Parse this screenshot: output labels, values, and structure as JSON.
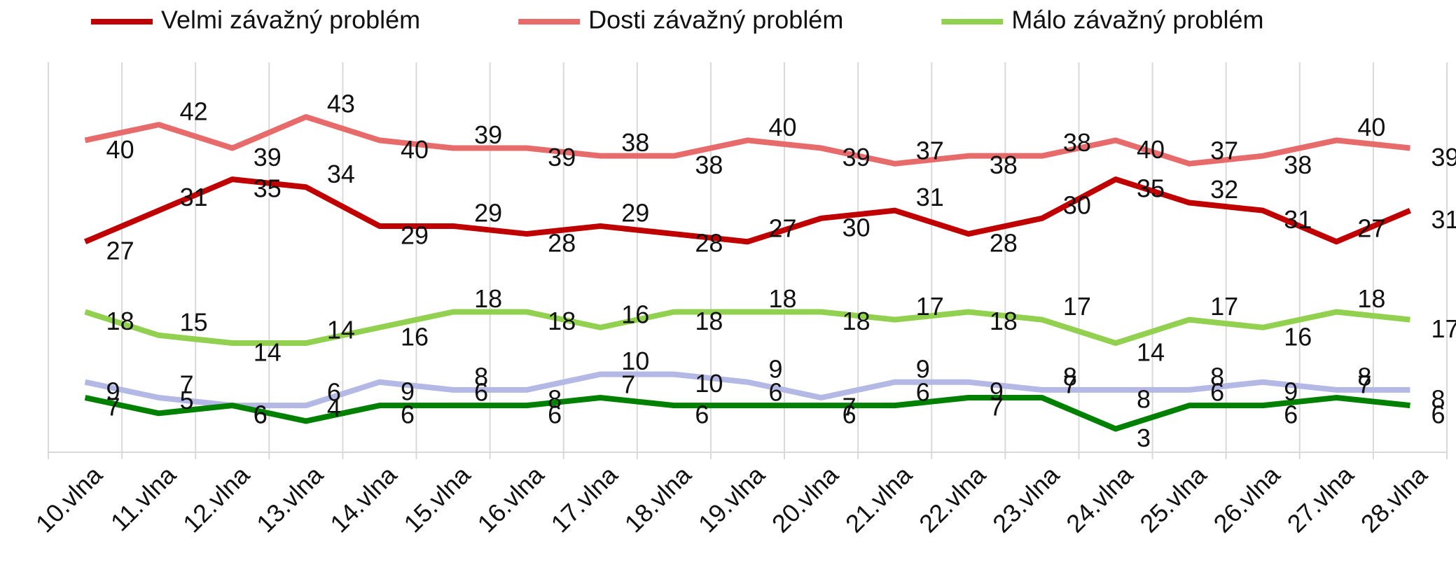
{
  "chart_data": {
    "type": "line",
    "categories": [
      "10.vlna",
      "11.vlna",
      "12.vlna",
      "13.vlna",
      "14.vlna",
      "15.vlna",
      "16.vlna",
      "17.vlna",
      "18.vlna",
      "19.vlna",
      "20.vlna",
      "21.vlna",
      "22.vlna",
      "23.vlna",
      "24.vlna",
      "25.vlna",
      "26.vlna",
      "27.vlna",
      "28.vlna"
    ],
    "series": [
      {
        "name": "Velmi závažný problém",
        "color": "#c00000",
        "values": [
          27,
          31,
          35,
          34,
          29,
          29,
          28,
          29,
          28,
          27,
          30,
          31,
          28,
          30,
          35,
          32,
          31,
          27,
          31
        ]
      },
      {
        "name": "Dosti závažný problém",
        "color": "#e86b6b",
        "values": [
          40,
          42,
          39,
          43,
          40,
          39,
          39,
          38,
          38,
          40,
          39,
          37,
          38,
          38,
          40,
          37,
          38,
          40,
          39
        ]
      },
      {
        "name": "Málo závažný problém",
        "color": "#92d050",
        "values": [
          18,
          15,
          14,
          14,
          16,
          18,
          18,
          16,
          18,
          18,
          18,
          17,
          18,
          17,
          14,
          17,
          16,
          18,
          17
        ]
      },
      {
        "color": "#b4b8e4",
        "values": [
          9,
          7,
          6,
          6,
          9,
          8,
          8,
          10,
          10,
          9,
          7,
          9,
          9,
          8,
          8,
          8,
          9,
          8,
          8
        ]
      },
      {
        "color": "#008000",
        "values": [
          7,
          5,
          6,
          4,
          6,
          6,
          6,
          7,
          6,
          6,
          6,
          6,
          7,
          7,
          3,
          6,
          6,
          7,
          6
        ]
      }
    ],
    "ylim": [
      0,
      50
    ],
    "grid": true,
    "legend": "top",
    "data_labels": true
  }
}
